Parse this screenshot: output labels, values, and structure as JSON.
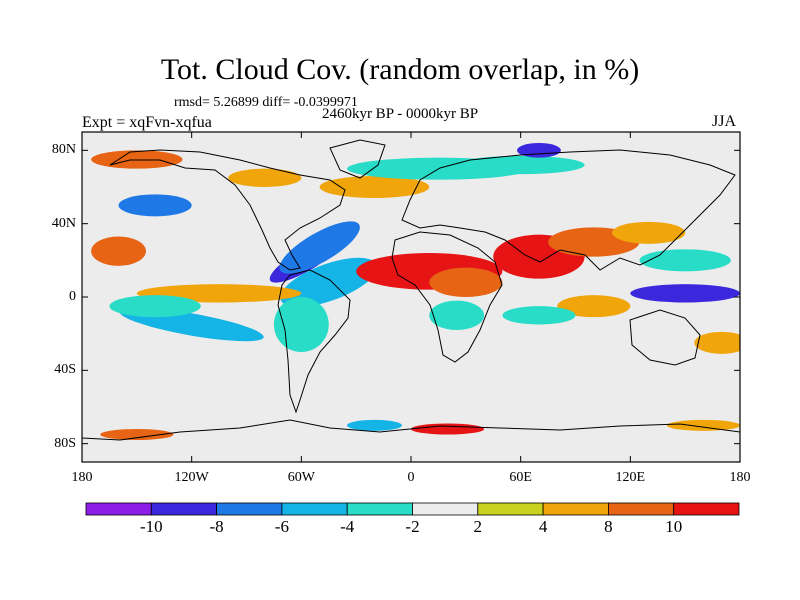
{
  "title": "Tot. Cloud Cov. (random overlap, in %)",
  "stats": "rmsd= 5.26899 diff= -0.0399971",
  "period": "2460kyr BP - 0000kyr BP",
  "experiment": "Expt = xqFvn-xqfua",
  "season": "JJA",
  "map": {
    "projection": "cylindrical-equidistant",
    "lon_range": [
      -180,
      180
    ],
    "lat_range": [
      -90,
      90
    ],
    "y_ticks": [
      {
        "lat": 80,
        "label": "80N"
      },
      {
        "lat": 40,
        "label": "40N"
      },
      {
        "lat": 0,
        "label": "0"
      },
      {
        "lat": -40,
        "label": "40S"
      },
      {
        "lat": -80,
        "label": "80S"
      }
    ],
    "x_ticks": [
      {
        "lon": -180,
        "label": "180"
      },
      {
        "lon": -120,
        "label": "120W"
      },
      {
        "lon": -60,
        "label": "60W"
      },
      {
        "lon": 0,
        "label": "0"
      },
      {
        "lon": 60,
        "label": "60E"
      },
      {
        "lon": 120,
        "label": "120E"
      },
      {
        "lon": 180,
        "label": "180"
      }
    ]
  },
  "colorbar": {
    "colors": [
      "#8c1ee6",
      "#3c28dc",
      "#1e78e6",
      "#14b4e6",
      "#28dcc8",
      "#ececec",
      "#c8d21e",
      "#f0a50a",
      "#e66414",
      "#e61414"
    ],
    "labels": [
      "-10",
      "-8",
      "-6",
      "-4",
      "-2",
      "2",
      "4",
      "8",
      "10"
    ]
  },
  "anomalies": [
    {
      "lon": -58,
      "lat": 20,
      "rx": 22,
      "ry": 6,
      "rot": -30,
      "level": -10
    },
    {
      "lon": -45,
      "lat": 8,
      "rx": 28,
      "ry": 10,
      "rot": -20,
      "level": -6
    },
    {
      "lon": -50,
      "lat": 27,
      "rx": 25,
      "ry": 8,
      "rot": -30,
      "level": -8
    },
    {
      "lon": -140,
      "lat": 50,
      "rx": 20,
      "ry": 6,
      "rot": 0,
      "level": -8
    },
    {
      "lon": -105,
      "lat": 2,
      "rx": 45,
      "ry": 5,
      "rot": 0,
      "level": 4
    },
    {
      "lon": -120,
      "lat": -15,
      "rx": 40,
      "ry": 6,
      "rot": 10,
      "level": -6
    },
    {
      "lon": -60,
      "lat": -15,
      "rx": 15,
      "ry": 15,
      "rot": 0,
      "level": -4
    },
    {
      "lon": -20,
      "lat": 60,
      "rx": 30,
      "ry": 6,
      "rot": 0,
      "level": 4
    },
    {
      "lon": 15,
      "lat": 70,
      "rx": 50,
      "ry": 6,
      "rot": 0,
      "level": -4
    },
    {
      "lon": 60,
      "lat": 72,
      "rx": 35,
      "ry": 5,
      "rot": 0,
      "level": -4
    },
    {
      "lon": 70,
      "lat": 80,
      "rx": 12,
      "ry": 4,
      "rot": 0,
      "level": -10
    },
    {
      "lon": 10,
      "lat": 14,
      "rx": 40,
      "ry": 10,
      "rot": 0,
      "level": 10
    },
    {
      "lon": 30,
      "lat": 8,
      "rx": 20,
      "ry": 8,
      "rot": 0,
      "level": 8
    },
    {
      "lon": 70,
      "lat": 22,
      "rx": 25,
      "ry": 12,
      "rot": 0,
      "level": 10
    },
    {
      "lon": 100,
      "lat": 30,
      "rx": 25,
      "ry": 8,
      "rot": 0,
      "level": 8
    },
    {
      "lon": 130,
      "lat": 35,
      "rx": 20,
      "ry": 6,
      "rot": 0,
      "level": 4
    },
    {
      "lon": 150,
      "lat": 20,
      "rx": 25,
      "ry": 6,
      "rot": 0,
      "level": -4
    },
    {
      "lon": 150,
      "lat": 2,
      "rx": 30,
      "ry": 5,
      "rot": 0,
      "level": -10
    },
    {
      "lon": 100,
      "lat": -5,
      "rx": 20,
      "ry": 6,
      "rot": 0,
      "level": 4
    },
    {
      "lon": 25,
      "lat": -10,
      "rx": 15,
      "ry": 8,
      "rot": 0,
      "level": -4
    },
    {
      "lon": 70,
      "lat": -10,
      "rx": 20,
      "ry": 5,
      "rot": 0,
      "level": -4
    },
    {
      "lon": -160,
      "lat": 25,
      "rx": 15,
      "ry": 8,
      "rot": 0,
      "level": 8
    },
    {
      "lon": -140,
      "lat": -5,
      "rx": 25,
      "ry": 6,
      "rot": 0,
      "level": -4
    },
    {
      "lon": 20,
      "lat": -72,
      "rx": 20,
      "ry": 3,
      "rot": 0,
      "level": 10
    },
    {
      "lon": -20,
      "lat": -70,
      "rx": 15,
      "ry": 3,
      "rot": 0,
      "level": -6
    },
    {
      "lon": 160,
      "lat": -70,
      "rx": 20,
      "ry": 3,
      "rot": 0,
      "level": 4
    },
    {
      "lon": -150,
      "lat": -75,
      "rx": 20,
      "ry": 3,
      "rot": 0,
      "level": 8
    },
    {
      "lon": 170,
      "lat": -25,
      "rx": 15,
      "ry": 6,
      "rot": 0,
      "level": 4
    },
    {
      "lon": -80,
      "lat": 65,
      "rx": 20,
      "ry": 5,
      "rot": 0,
      "level": 4
    },
    {
      "lon": -150,
      "lat": 75,
      "rx": 25,
      "ry": 5,
      "rot": 0,
      "level": 8
    }
  ]
}
